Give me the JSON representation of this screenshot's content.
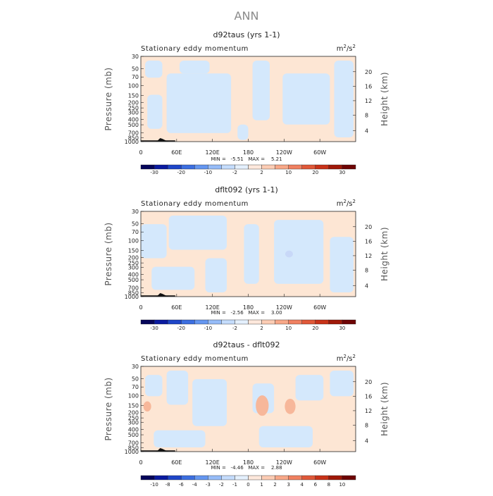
{
  "page_title": "ANN",
  "chart_data": [
    {
      "type": "heatmap",
      "title": "d92taus (yrs 1-1)",
      "left_subtitle": "Stationary eddy momentum",
      "units": "m²/s²",
      "units_base": "m",
      "units_mid": "/s",
      "units_exp": "2",
      "ylabel": "Pressure (mb)",
      "ylabel_right": "Height (km)",
      "y_ticks": [
        "30",
        "50",
        "70",
        "100",
        "150",
        "200",
        "250",
        "300",
        "400",
        "500",
        "700",
        "850",
        "1000"
      ],
      "y_ticks_right": [
        "4",
        "8",
        "12",
        "16",
        "20"
      ],
      "x_ticks": [
        "0",
        "60E",
        "120E",
        "180",
        "120W",
        "60W"
      ],
      "stats": "MIN =   -5.51   MAX =    5.21",
      "colorbar_labels": [
        "-30",
        "-20",
        "-10",
        "-2",
        "2",
        "10",
        "20",
        "30"
      ],
      "colors": {
        "negative": "#d4e8fc",
        "positive": "#fde6d4"
      }
    },
    {
      "type": "heatmap",
      "title": "dflt092 (yrs 1-1)",
      "left_subtitle": "Stationary eddy momentum",
      "units": "m²/s²",
      "units_base": "m",
      "units_mid": "/s",
      "units_exp": "2",
      "ylabel": "Pressure (mb)",
      "ylabel_right": "Height (km)",
      "y_ticks": [
        "30",
        "50",
        "70",
        "100",
        "150",
        "200",
        "250",
        "300",
        "400",
        "500",
        "700",
        "850",
        "1000"
      ],
      "y_ticks_right": [
        "4",
        "8",
        "12",
        "16",
        "20"
      ],
      "x_ticks": [
        "0",
        "60E",
        "120E",
        "180",
        "120W",
        "60W"
      ],
      "stats": "MIN =   -2.56   MAX =    3.00",
      "colorbar_labels": [
        "-30",
        "-20",
        "-10",
        "-2",
        "2",
        "10",
        "20",
        "30"
      ],
      "colors": {
        "negative": "#d4e8fc",
        "positive": "#fde6d4"
      }
    },
    {
      "type": "heatmap",
      "title": "d92taus - dflt092",
      "left_subtitle": "Stationary eddy momentum",
      "units": "m²/s²",
      "units_base": "m",
      "units_mid": "/s",
      "units_exp": "2",
      "ylabel": "Pressure (mb)",
      "ylabel_right": "Height (km)",
      "y_ticks": [
        "30",
        "50",
        "70",
        "100",
        "150",
        "200",
        "250",
        "300",
        "400",
        "500",
        "700",
        "850",
        "1000"
      ],
      "y_ticks_right": [
        "4",
        "8",
        "12",
        "16",
        "20"
      ],
      "x_ticks": [
        "0",
        "60E",
        "120E",
        "180",
        "120W",
        "60W"
      ],
      "stats": "MIN =   -4.46   MAX =    2.88",
      "colorbar_labels": [
        "-10",
        "-8",
        "-6",
        "-4",
        "-3",
        "-2",
        "-1",
        "0",
        "1",
        "2",
        "3",
        "4",
        "6",
        "8",
        "10"
      ],
      "colors": {
        "negative": "#d4e8fc",
        "positive": "#fde6d4",
        "blob": "#f7b79a"
      }
    }
  ],
  "colorbar_palettes": {
    "p16": [
      "#05055a",
      "#0a1aa0",
      "#1e46c8",
      "#3c6ee0",
      "#6496f0",
      "#96bcf8",
      "#c4dcfc",
      "#e4f0fd",
      "#fde8dc",
      "#fcccb4",
      "#f8a888",
      "#f08060",
      "#e05838",
      "#c83218",
      "#a01808",
      "#6e0404"
    ],
    "p16b": [
      "#05055a",
      "#0a1aa0",
      "#1e46c8",
      "#3c6ee0",
      "#6496f0",
      "#96bcf8",
      "#c4dcfc",
      "#e4f0fd",
      "#fde8dc",
      "#fcccb4",
      "#f8a888",
      "#f08060",
      "#e05838",
      "#c83218",
      "#a01808",
      "#6e0404"
    ]
  }
}
